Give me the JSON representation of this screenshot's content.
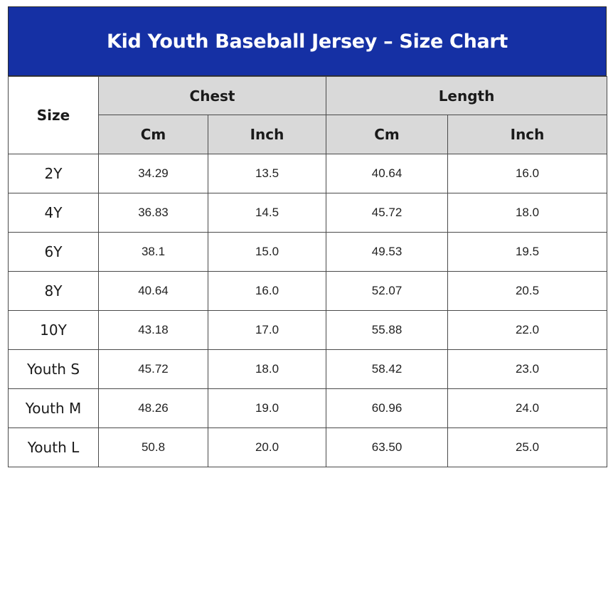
{
  "title": "Kid Youth Baseball Jersey – Size Chart",
  "colors": {
    "title_bg": "#1530a4",
    "header_bg": "#d9d9d9"
  },
  "headers": {
    "size": "Size",
    "chest": "Chest",
    "length": "Length",
    "chest_cm": "Cm",
    "chest_inch": "Inch",
    "length_cm": "Cm",
    "length_inch": "Inch"
  },
  "rows": [
    {
      "size": "2Y",
      "chest_cm": "34.29",
      "chest_inch": "13.5",
      "length_cm": "40.64",
      "length_inch": "16.0"
    },
    {
      "size": "4Y",
      "chest_cm": "36.83",
      "chest_inch": "14.5",
      "length_cm": "45.72",
      "length_inch": "18.0"
    },
    {
      "size": "6Y",
      "chest_cm": "38.1",
      "chest_inch": "15.0",
      "length_cm": "49.53",
      "length_inch": "19.5"
    },
    {
      "size": "8Y",
      "chest_cm": "40.64",
      "chest_inch": "16.0",
      "length_cm": "52.07",
      "length_inch": "20.5"
    },
    {
      "size": "10Y",
      "chest_cm": "43.18",
      "chest_inch": "17.0",
      "length_cm": "55.88",
      "length_inch": "22.0"
    },
    {
      "size": "Youth S",
      "chest_cm": "45.72",
      "chest_inch": "18.0",
      "length_cm": "58.42",
      "length_inch": "23.0"
    },
    {
      "size": "Youth M",
      "chest_cm": "48.26",
      "chest_inch": "19.0",
      "length_cm": "60.96",
      "length_inch": "24.0"
    },
    {
      "size": "Youth L",
      "chest_cm": "50.8",
      "chest_inch": "20.0",
      "length_cm": "63.50",
      "length_inch": "25.0"
    }
  ]
}
